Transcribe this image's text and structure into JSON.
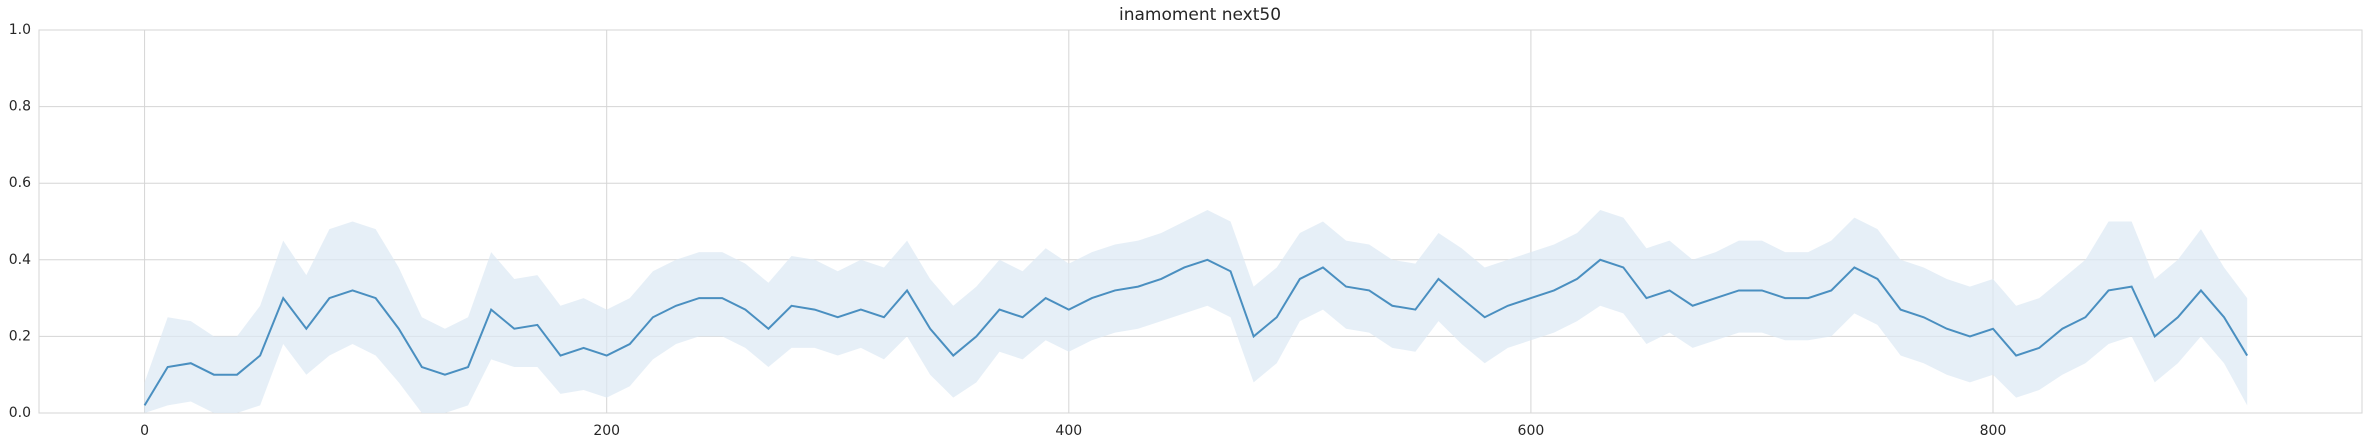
{
  "chart_data": {
    "type": "line",
    "title": "inamoment next50",
    "x": [
      0,
      10,
      20,
      30,
      40,
      50,
      60,
      70,
      80,
      90,
      100,
      110,
      120,
      130,
      140,
      150,
      160,
      170,
      180,
      190,
      200,
      210,
      220,
      230,
      240,
      250,
      260,
      270,
      280,
      290,
      300,
      310,
      320,
      330,
      340,
      350,
      360,
      370,
      380,
      390,
      400,
      410,
      420,
      430,
      440,
      450,
      460,
      470,
      480,
      490,
      500,
      510,
      520,
      530,
      540,
      550,
      560,
      570,
      580,
      590,
      600,
      610,
      620,
      630,
      640,
      650,
      660,
      670,
      680,
      690,
      700,
      710,
      720,
      730,
      740,
      750,
      760,
      770,
      780,
      790,
      800,
      810,
      820,
      830,
      840,
      850,
      860,
      870,
      880,
      890,
      900,
      910
    ],
    "values": [
      0.02,
      0.12,
      0.13,
      0.1,
      0.1,
      0.15,
      0.3,
      0.22,
      0.3,
      0.32,
      0.3,
      0.22,
      0.12,
      0.1,
      0.12,
      0.27,
      0.22,
      0.23,
      0.15,
      0.17,
      0.15,
      0.18,
      0.25,
      0.28,
      0.3,
      0.3,
      0.27,
      0.22,
      0.28,
      0.27,
      0.25,
      0.27,
      0.25,
      0.32,
      0.22,
      0.15,
      0.2,
      0.27,
      0.25,
      0.3,
      0.27,
      0.3,
      0.32,
      0.33,
      0.35,
      0.38,
      0.4,
      0.37,
      0.2,
      0.25,
      0.35,
      0.38,
      0.33,
      0.32,
      0.28,
      0.27,
      0.35,
      0.3,
      0.25,
      0.28,
      0.3,
      0.32,
      0.35,
      0.4,
      0.38,
      0.3,
      0.32,
      0.28,
      0.3,
      0.32,
      0.32,
      0.3,
      0.3,
      0.32,
      0.38,
      0.35,
      0.27,
      0.25,
      0.22,
      0.2,
      0.22,
      0.15,
      0.17,
      0.22,
      0.25,
      0.32,
      0.33,
      0.2,
      0.25,
      0.32,
      0.25,
      0.15
    ],
    "ci_lower": [
      0,
      0.02,
      0.03,
      0,
      0,
      0.02,
      0.18,
      0.1,
      0.15,
      0.18,
      0.15,
      0.08,
      0,
      0,
      0.02,
      0.14,
      0.12,
      0.12,
      0.05,
      0.06,
      0.04,
      0.07,
      0.14,
      0.18,
      0.2,
      0.2,
      0.17,
      0.12,
      0.17,
      0.17,
      0.15,
      0.17,
      0.14,
      0.2,
      0.1,
      0.04,
      0.08,
      0.16,
      0.14,
      0.19,
      0.16,
      0.19,
      0.21,
      0.22,
      0.24,
      0.26,
      0.28,
      0.25,
      0.08,
      0.13,
      0.24,
      0.27,
      0.22,
      0.21,
      0.17,
      0.16,
      0.24,
      0.18,
      0.13,
      0.17,
      0.19,
      0.21,
      0.24,
      0.28,
      0.26,
      0.18,
      0.21,
      0.17,
      0.19,
      0.21,
      0.21,
      0.19,
      0.19,
      0.2,
      0.26,
      0.23,
      0.15,
      0.13,
      0.1,
      0.08,
      0.1,
      0.04,
      0.06,
      0.1,
      0.13,
      0.18,
      0.2,
      0.08,
      0.13,
      0.2,
      0.13,
      0.02
    ],
    "ci_upper": [
      0.08,
      0.25,
      0.24,
      0.2,
      0.2,
      0.28,
      0.45,
      0.36,
      0.48,
      0.5,
      0.48,
      0.38,
      0.25,
      0.22,
      0.25,
      0.42,
      0.35,
      0.36,
      0.28,
      0.3,
      0.27,
      0.3,
      0.37,
      0.4,
      0.42,
      0.42,
      0.39,
      0.34,
      0.41,
      0.4,
      0.37,
      0.4,
      0.38,
      0.45,
      0.35,
      0.28,
      0.33,
      0.4,
      0.37,
      0.43,
      0.39,
      0.42,
      0.44,
      0.45,
      0.47,
      0.5,
      0.53,
      0.5,
      0.33,
      0.38,
      0.47,
      0.5,
      0.45,
      0.44,
      0.4,
      0.39,
      0.47,
      0.43,
      0.38,
      0.4,
      0.42,
      0.44,
      0.47,
      0.53,
      0.51,
      0.43,
      0.45,
      0.4,
      0.42,
      0.45,
      0.45,
      0.42,
      0.42,
      0.45,
      0.51,
      0.48,
      0.4,
      0.38,
      0.35,
      0.33,
      0.35,
      0.28,
      0.3,
      0.35,
      0.4,
      0.5,
      0.5,
      0.35,
      0.4,
      0.48,
      0.38,
      0.3
    ],
    "color": "#4a8fc0",
    "band_color": "#dbe8f4",
    "xlim": [
      -45.7,
      959.7
    ],
    "xticks": [
      0,
      200,
      400,
      600,
      800
    ],
    "ylim": [
      0,
      1
    ],
    "yticks": [
      {
        "value": 0,
        "label": "0.0"
      },
      {
        "value": 0.2,
        "label": "0.2"
      },
      {
        "value": 0.4,
        "label": "0.4"
      },
      {
        "value": 0.6,
        "label": "0.6"
      },
      {
        "value": 0.8,
        "label": "0.8"
      },
      {
        "value": 1,
        "label": "1.0"
      }
    ],
    "grid": true
  }
}
